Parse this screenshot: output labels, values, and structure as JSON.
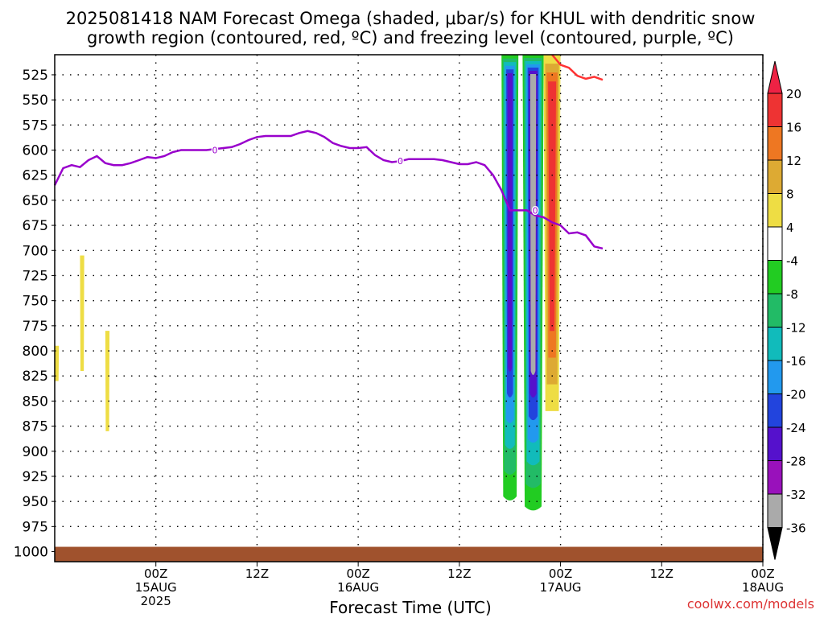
{
  "title": {
    "line1": "2025081418 NAM Forecast Omega (shaded, μbar/s) for KHUL with dendritic snow",
    "line2": "growth region (contoured, red, ºC) and freezing level (contoured, purple, ºC)"
  },
  "xlabel": "Forecast Time (UTC)",
  "credit": "coolwx.com/models",
  "colors": {
    "freezing_line": "#9900cc",
    "dgz_line": "#ff3333",
    "ground": "#a0522d",
    "grid": "#000000"
  },
  "chart_data": {
    "type": "heatmap",
    "title": "2025081418 NAM Forecast Omega (shaded, μbar/s) for KHUL with dendritic snow growth region (contoured, red, ºC) and freezing level (contoured, purple, ºC)",
    "xlabel": "Forecast Time (UTC)",
    "ylabel": "",
    "xlim_hours": [
      -6,
      78
    ],
    "ylim": [
      505,
      1010
    ],
    "y_axis_inverted": true,
    "grid": true,
    "y_ticks": [
      525,
      550,
      575,
      600,
      625,
      650,
      675,
      700,
      725,
      750,
      775,
      800,
      825,
      850,
      875,
      900,
      925,
      950,
      975,
      1000
    ],
    "x_ticks": [
      {
        "hour": 6,
        "line1": "00Z",
        "line2": "15AUG",
        "line3": "2025"
      },
      {
        "hour": 18,
        "line1": "12Z",
        "line2": "",
        "line3": ""
      },
      {
        "hour": 30,
        "line1": "00Z",
        "line2": "16AUG",
        "line3": ""
      },
      {
        "hour": 42,
        "line1": "12Z",
        "line2": "",
        "line3": ""
      },
      {
        "hour": 54,
        "line1": "00Z",
        "line2": "17AUG",
        "line3": ""
      },
      {
        "hour": 66,
        "line1": "12Z",
        "line2": "",
        "line3": ""
      },
      {
        "hour": 78,
        "line1": "00Z",
        "line2": "18AUG",
        "line3": ""
      }
    ],
    "colorbar": {
      "levels": [
        20,
        16,
        12,
        8,
        4,
        -4,
        -8,
        -12,
        -16,
        -20,
        -24,
        -28,
        -32,
        -36
      ],
      "colors": [
        "#ee2244",
        "#ee3333",
        "#ee7722",
        "#ddaa33",
        "#eedd44",
        "#ffffff",
        "#22cc22",
        "#22bb66",
        "#11bbbb",
        "#2299ee",
        "#2244dd",
        "#5511cc",
        "#9911bb",
        "#aaaaaa",
        "#000000"
      ]
    },
    "freezing_level_line": {
      "label": "0",
      "points": [
        [
          -6,
          635
        ],
        [
          -5,
          618
        ],
        [
          -4,
          615
        ],
        [
          -3,
          617
        ],
        [
          -2,
          610
        ],
        [
          -1,
          606
        ],
        [
          0,
          613
        ],
        [
          1,
          615
        ],
        [
          2,
          615
        ],
        [
          3,
          613
        ],
        [
          4,
          610
        ],
        [
          5,
          607
        ],
        [
          6,
          608
        ],
        [
          7,
          606
        ],
        [
          8,
          602
        ],
        [
          9,
          600
        ],
        [
          10,
          600
        ],
        [
          11,
          600
        ],
        [
          12,
          600
        ],
        [
          13,
          599
        ],
        [
          14,
          598
        ],
        [
          15,
          597
        ],
        [
          16,
          594
        ],
        [
          17,
          590
        ],
        [
          18,
          587
        ],
        [
          19,
          586
        ],
        [
          20,
          586
        ],
        [
          21,
          586
        ],
        [
          22,
          586
        ],
        [
          23,
          583
        ],
        [
          24,
          581
        ],
        [
          25,
          583
        ],
        [
          26,
          587
        ],
        [
          27,
          593
        ],
        [
          28,
          596
        ],
        [
          29,
          598
        ],
        [
          30,
          598
        ],
        [
          31,
          597
        ],
        [
          32,
          605
        ],
        [
          33,
          610
        ],
        [
          34,
          612
        ],
        [
          35,
          611
        ],
        [
          36,
          609
        ],
        [
          37,
          609
        ],
        [
          38,
          609
        ],
        [
          39,
          609
        ],
        [
          40,
          610
        ],
        [
          41,
          612
        ],
        [
          42,
          614
        ],
        [
          43,
          614
        ],
        [
          44,
          612
        ],
        [
          45,
          615
        ],
        [
          46,
          625
        ],
        [
          47,
          640
        ],
        [
          48,
          660
        ],
        [
          49,
          660
        ],
        [
          50,
          660
        ],
        [
          51,
          665
        ],
        [
          52,
          667
        ],
        [
          53,
          672
        ],
        [
          54,
          675
        ],
        [
          55,
          683
        ],
        [
          56,
          682
        ],
        [
          57,
          685
        ],
        [
          58,
          696
        ],
        [
          59,
          698
        ]
      ]
    },
    "dgz_contour": {
      "points": [
        [
          53,
          505
        ],
        [
          54,
          515
        ],
        [
          55,
          518
        ],
        [
          56,
          526
        ],
        [
          57,
          529
        ],
        [
          58,
          527
        ],
        [
          59,
          530
        ]
      ]
    },
    "omega_regions": [
      {
        "name": "early-positive-1",
        "value": 4,
        "x_range": [
          -6,
          -5.5
        ],
        "p_range": [
          795,
          830
        ]
      },
      {
        "name": "early-positive-2",
        "value": 4,
        "x_range": [
          -3,
          -2.5
        ],
        "p_range": [
          705,
          820
        ]
      },
      {
        "name": "early-positive-3",
        "value": 4,
        "x_range": [
          0,
          0.5
        ],
        "p_range": [
          780,
          880
        ]
      },
      {
        "name": "upward-band-1",
        "value": -28,
        "x_range": [
          47,
          49
        ],
        "p_range": [
          505,
          945
        ]
      },
      {
        "name": "upward-band-2",
        "value": -36,
        "x_range": [
          49.5,
          52
        ],
        "p_range": [
          505,
          955
        ]
      },
      {
        "name": "downward-band",
        "value": 16,
        "x_range": [
          52,
          54
        ],
        "p_range": [
          505,
          860
        ]
      }
    ],
    "surface_pressure": 1000
  }
}
